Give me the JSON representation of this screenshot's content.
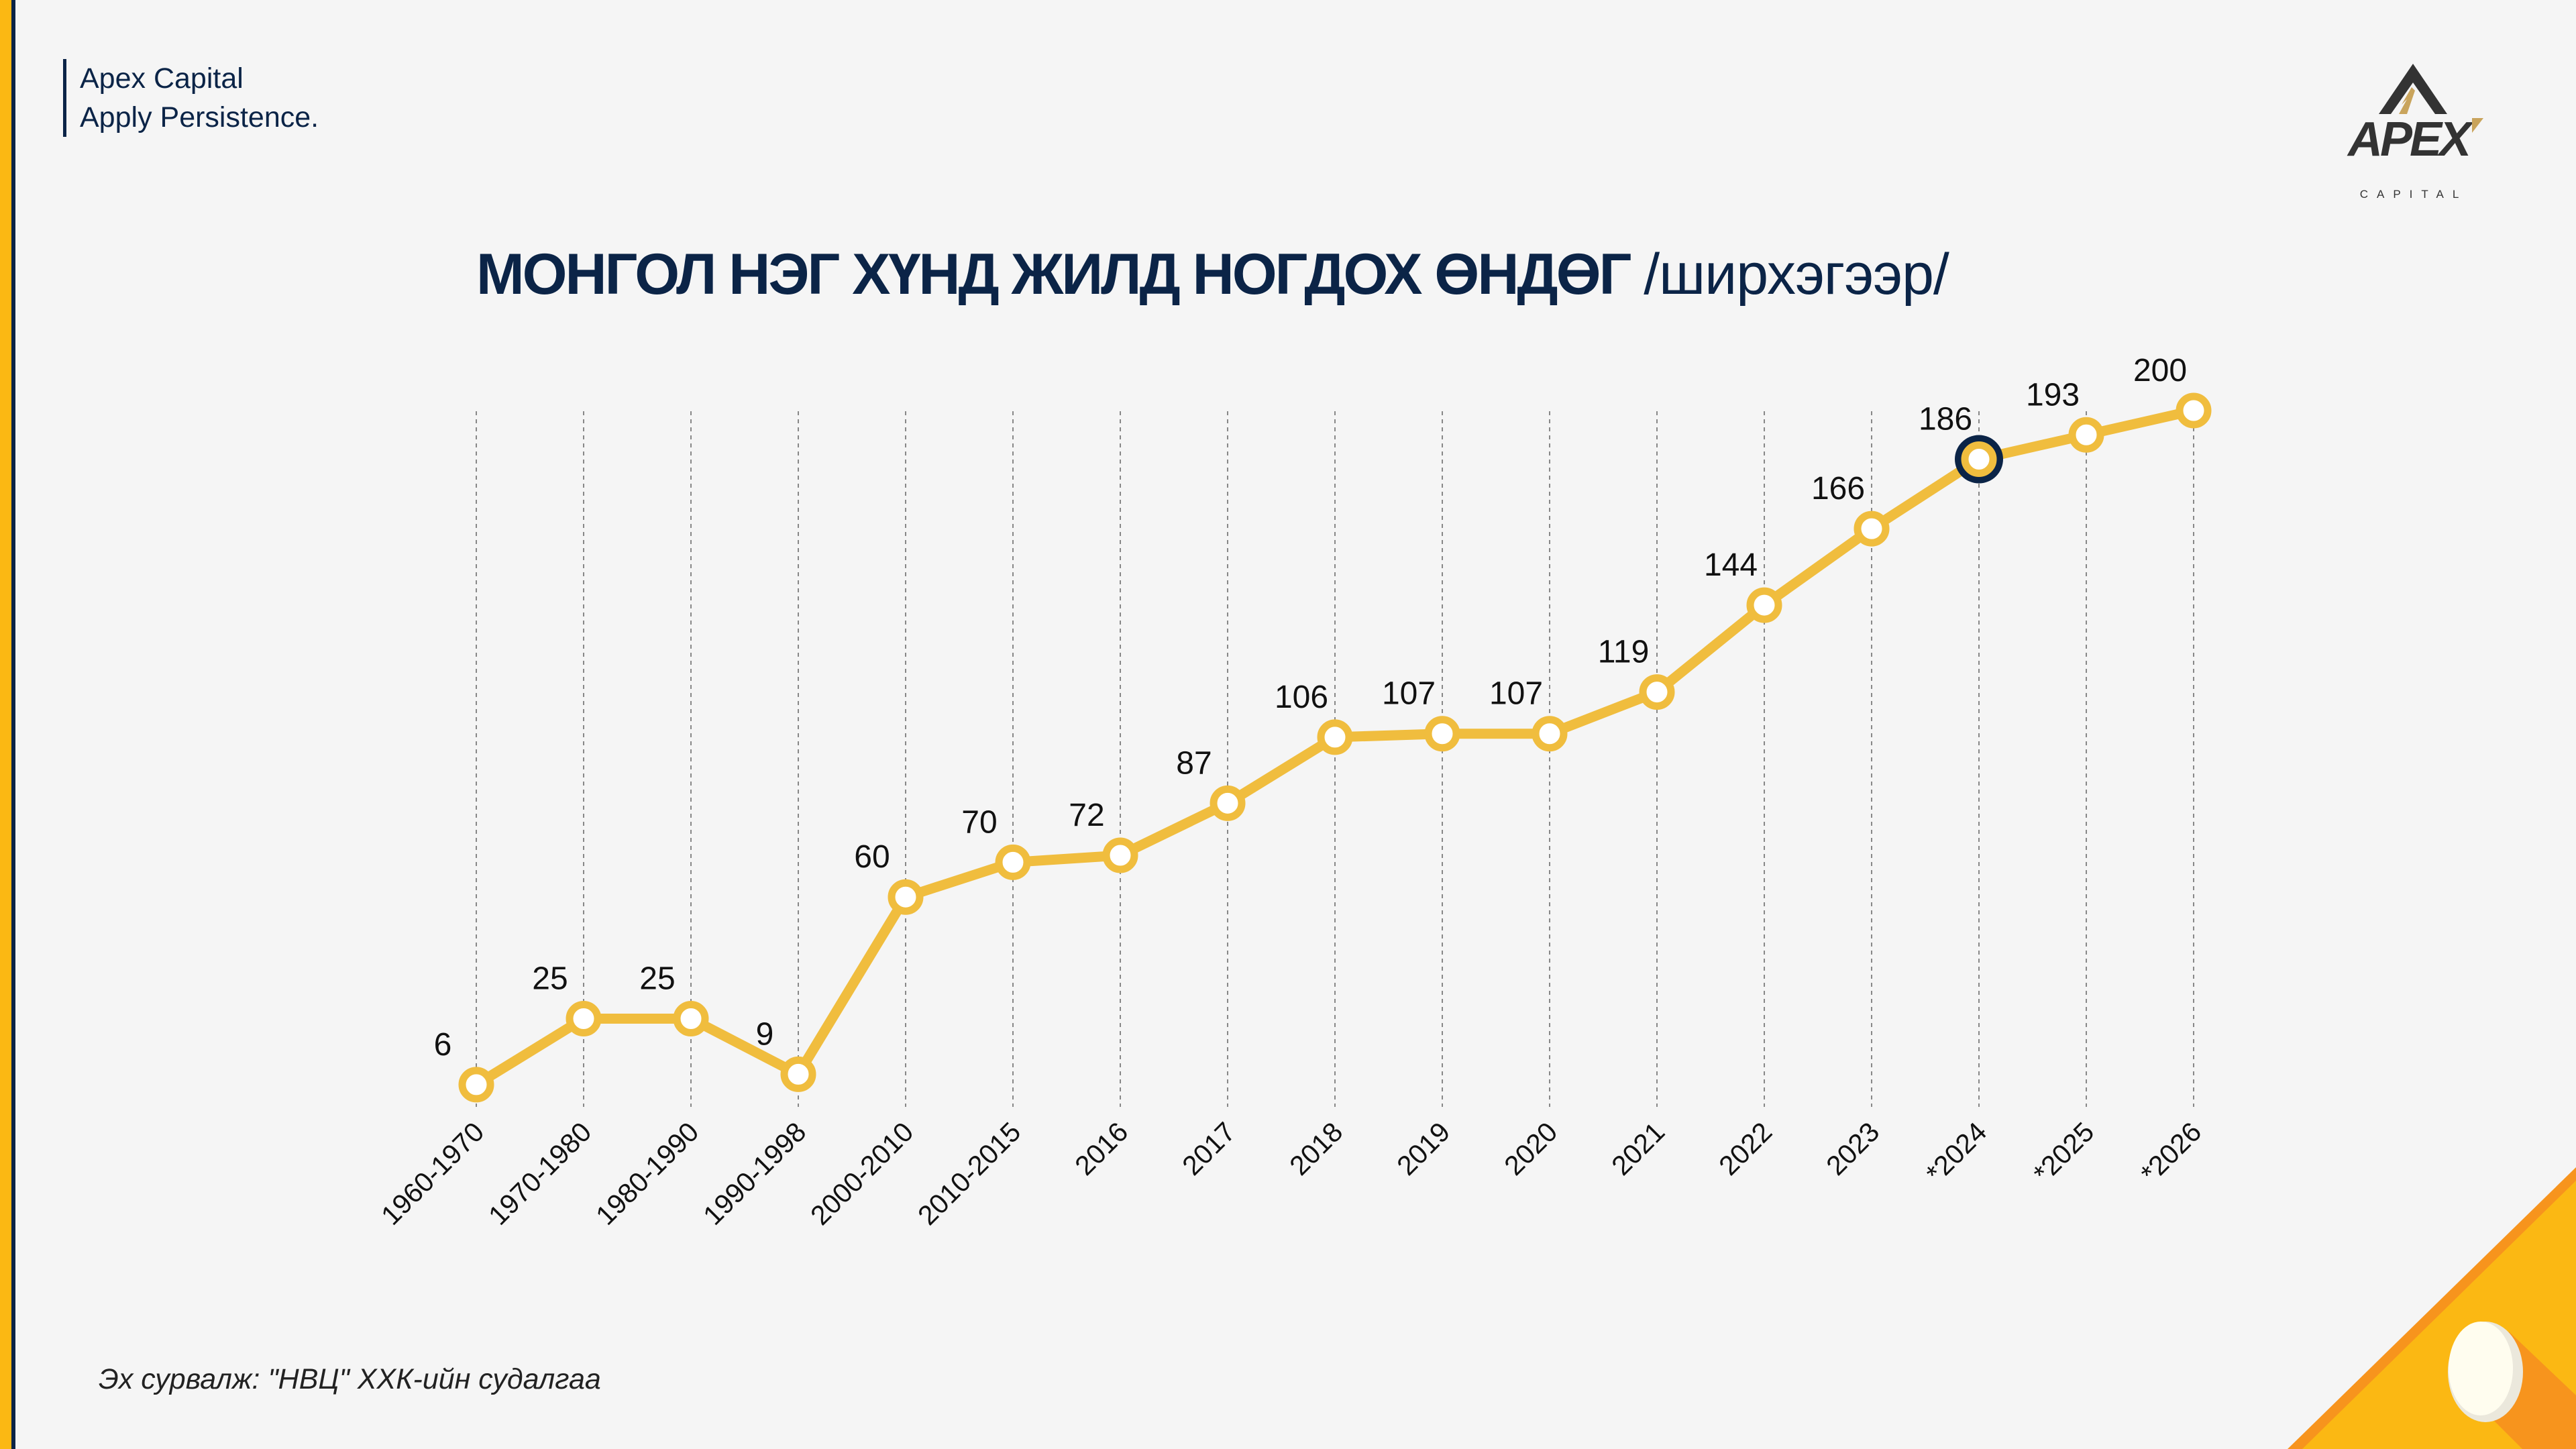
{
  "brand": {
    "name": "Apex Capital",
    "tagline": "Apply Persistence."
  },
  "logo": {
    "text": "APEX",
    "subtext": "CAPITAL"
  },
  "title": {
    "main": "МОНГОЛ НЭГ ХҮНД ЖИЛД НОГДОХ ӨНДӨГ",
    "unit": "/ширхэгээр/"
  },
  "source": "Эх сурвалж: \"НВЦ\" ХХК-ийн судалгаа",
  "colors": {
    "line": "#f0bd3e",
    "highlight": "#0b2447",
    "accent": "#fbb813",
    "text": "#0b2447"
  },
  "chart_data": {
    "type": "line",
    "title": "МОНГОЛ НЭГ ХҮНД ЖИЛД НОГДОХ ӨНДӨГ /ширхэгээр/",
    "categories": [
      "1960-1970",
      "1970-1980",
      "1980-1990",
      "1990-1998",
      "2000-2010",
      "2010-2015",
      "2016",
      "2017",
      "2018",
      "2019",
      "2020",
      "2021",
      "2022",
      "2023",
      "*2024",
      "*2025",
      "*2026"
    ],
    "values": [
      6,
      25,
      25,
      9,
      60,
      70,
      72,
      87,
      106,
      107,
      107,
      119,
      144,
      166,
      186,
      193,
      200
    ],
    "highlighted_category": "*2024",
    "grid": "vertical dashed",
    "legend": "none",
    "data_labels": true
  }
}
